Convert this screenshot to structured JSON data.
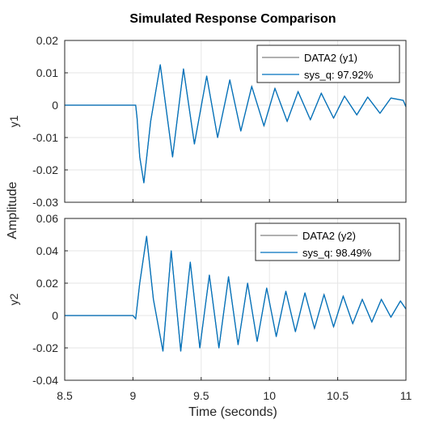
{
  "chart_data": {
    "type": "line",
    "title": "Simulated Response Comparison",
    "xlabel": "Time (seconds)",
    "ylabel": "Amplitude",
    "xlim": [
      8.5,
      11
    ],
    "xticks": [
      "8.5",
      "9",
      "9.5",
      "10",
      "10.5",
      "11"
    ],
    "grid": true,
    "colors": {
      "data": "#808080",
      "model": "#0072BD",
      "axis": "#262626",
      "grid": "#e6e6e6"
    },
    "subplots": [
      {
        "ylabel": "y1",
        "ylim": [
          -0.03,
          0.02
        ],
        "yticks": [
          "-0.03",
          "-0.02",
          "-0.01",
          "0",
          "0.01",
          "0.02"
        ],
        "legend_position": "top-right",
        "series": [
          {
            "name": "DATA2 (y1)",
            "color": "#808080"
          },
          {
            "name": "sys_q: 97.92%",
            "color": "#0072BD"
          }
        ],
        "x": [
          8.5,
          9.0,
          9.02,
          9.03,
          9.05,
          9.08,
          9.13,
          9.2,
          9.29,
          9.37,
          9.45,
          9.54,
          9.62,
          9.71,
          9.79,
          9.87,
          9.96,
          10.04,
          10.13,
          10.21,
          10.3,
          10.38,
          10.47,
          10.55,
          10.64,
          10.72,
          10.81,
          10.89,
          10.98,
          11.0
        ],
        "y": [
          0,
          0,
          0,
          -0.004,
          -0.016,
          -0.024,
          -0.005,
          0.0125,
          -0.016,
          0.0112,
          -0.012,
          0.009,
          -0.01,
          0.0078,
          -0.008,
          0.0058,
          -0.0064,
          0.0052,
          -0.005,
          0.0042,
          -0.0045,
          0.0037,
          -0.004,
          0.0028,
          -0.003,
          0.0025,
          -0.0025,
          0.0022,
          0.0015,
          -0.0005
        ]
      },
      {
        "ylabel": "y2",
        "ylim": [
          -0.04,
          0.06
        ],
        "yticks": [
          "-0.04",
          "-0.02",
          "0",
          "0.02",
          "0.04",
          "0.06"
        ],
        "legend_position": "top-right",
        "series": [
          {
            "name": "DATA2 (y2)",
            "color": "#808080"
          },
          {
            "name": "sys_q: 98.49%",
            "color": "#0072BD"
          }
        ],
        "x": [
          8.5,
          9.0,
          9.02,
          9.05,
          9.1,
          9.15,
          9.22,
          9.28,
          9.35,
          9.42,
          9.49,
          9.56,
          9.63,
          9.7,
          9.77,
          9.84,
          9.91,
          9.98,
          10.05,
          10.12,
          10.19,
          10.26,
          10.33,
          10.4,
          10.47,
          10.54,
          10.61,
          10.68,
          10.75,
          10.82,
          10.89,
          10.96,
          11.0
        ],
        "y": [
          0,
          0,
          -0.002,
          0.02,
          0.049,
          0.01,
          -0.022,
          0.04,
          -0.022,
          0.033,
          -0.02,
          0.025,
          -0.02,
          0.024,
          -0.018,
          0.02,
          -0.016,
          0.017,
          -0.013,
          0.015,
          -0.01,
          0.014,
          -0.008,
          0.013,
          -0.007,
          0.012,
          -0.005,
          0.01,
          -0.004,
          0.01,
          -0.001,
          0.009,
          0.004
        ]
      }
    ]
  }
}
